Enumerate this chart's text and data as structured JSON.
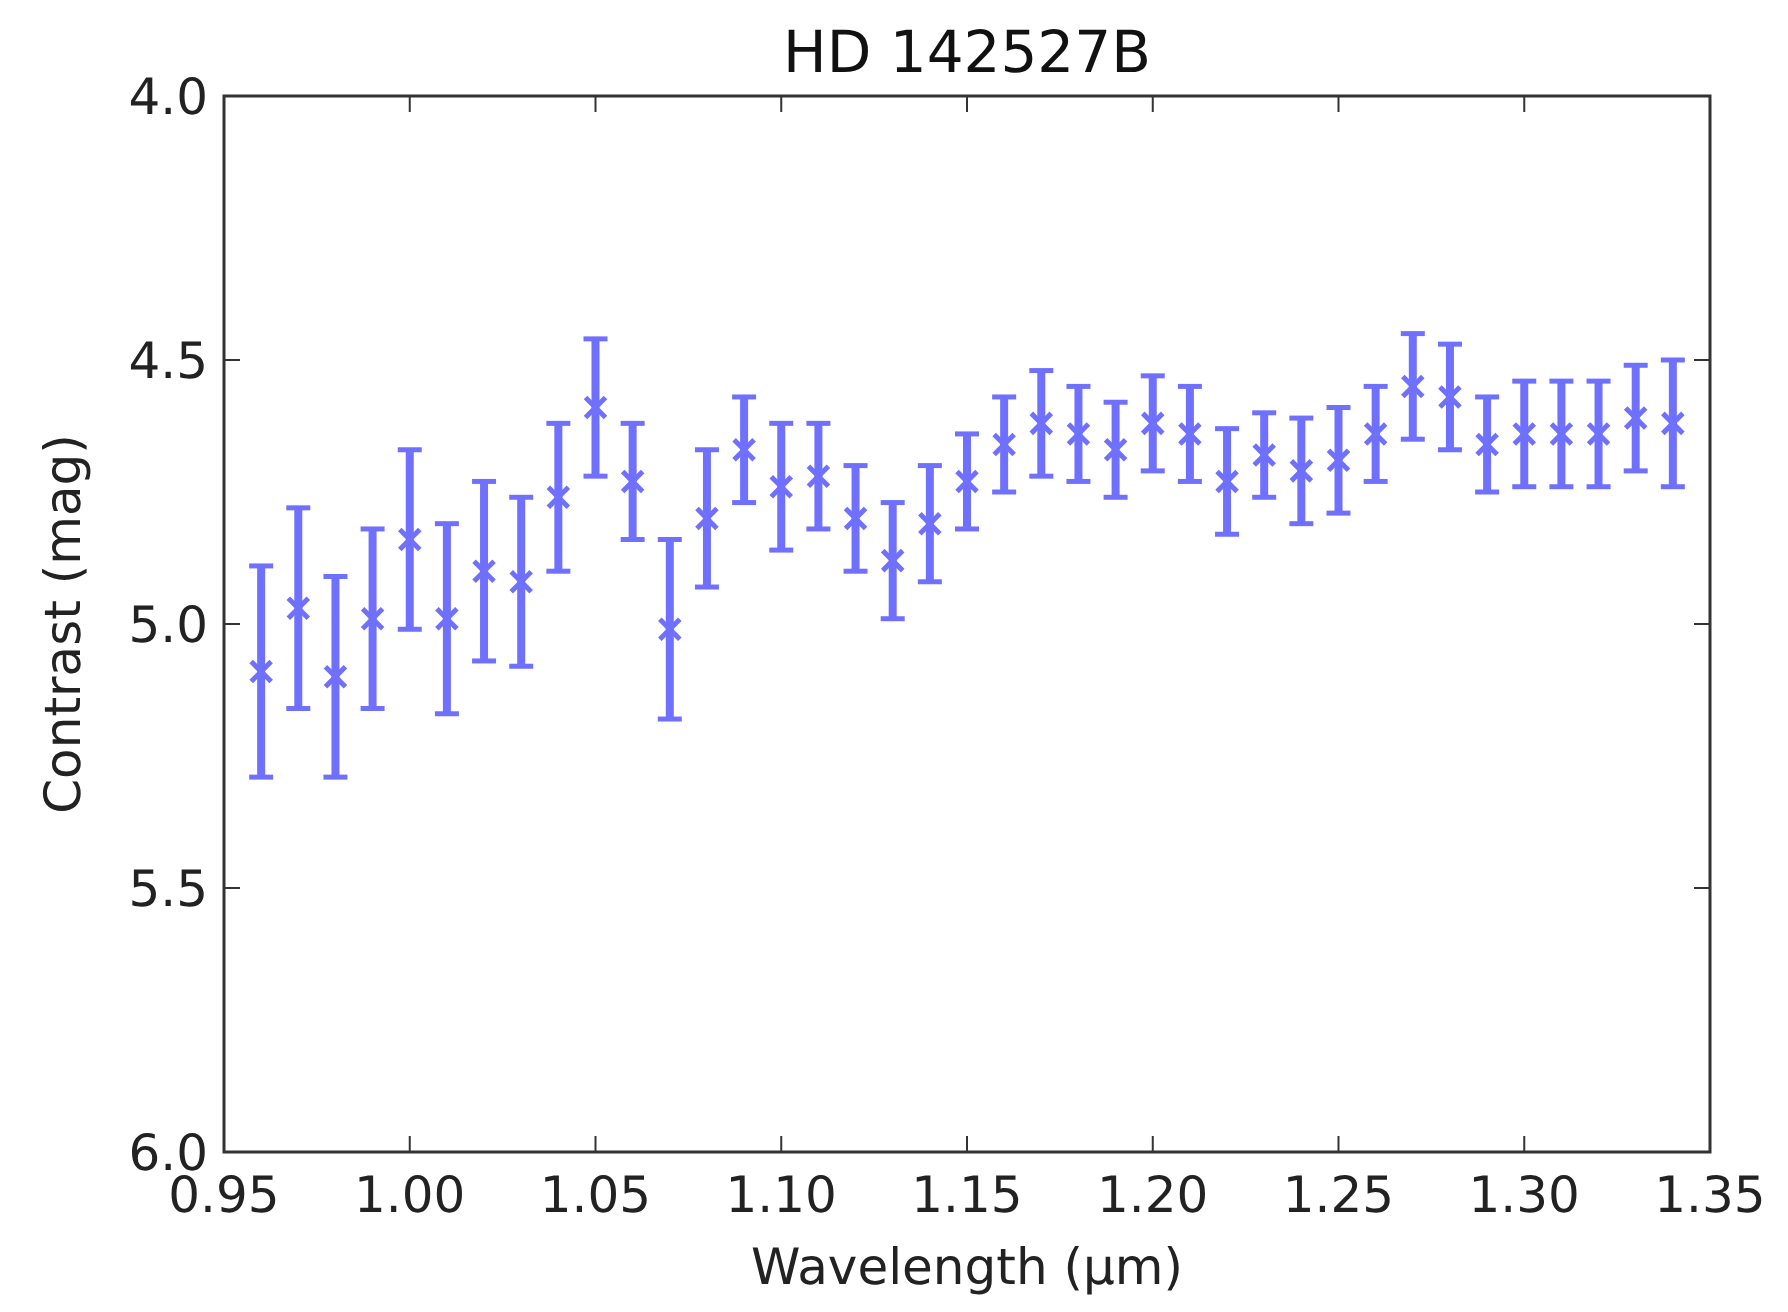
{
  "chart_data": {
    "type": "scatter",
    "title": "HD 142527B",
    "xlabel": "Wavelength (μm)",
    "ylabel": "Contrast (mag)",
    "x": [
      0.96,
      0.97,
      0.98,
      0.99,
      1.0,
      1.01,
      1.02,
      1.03,
      1.04,
      1.05,
      1.06,
      1.07,
      1.08,
      1.09,
      1.1,
      1.11,
      1.12,
      1.13,
      1.14,
      1.15,
      1.16,
      1.17,
      1.18,
      1.19,
      1.2,
      1.21,
      1.22,
      1.23,
      1.24,
      1.25,
      1.26,
      1.27,
      1.28,
      1.29,
      1.3,
      1.31,
      1.32,
      1.33,
      1.34
    ],
    "series": [
      {
        "color": "#7070ff",
        "values": [
          5.09,
          4.97,
          5.1,
          4.99,
          4.84,
          4.99,
          4.9,
          4.92,
          4.76,
          4.59,
          4.73,
          5.01,
          4.8,
          4.67,
          4.74,
          4.72,
          4.8,
          4.88,
          4.81,
          4.73,
          4.66,
          4.62,
          4.64,
          4.67,
          4.62,
          4.64,
          4.73,
          4.68,
          4.71,
          4.69,
          4.64,
          4.55,
          4.57,
          4.66,
          4.64,
          4.64,
          4.64,
          4.61,
          4.62
        ],
        "errors": [
          0.2,
          0.19,
          0.19,
          0.17,
          0.17,
          0.18,
          0.17,
          0.16,
          0.14,
          0.13,
          0.11,
          0.17,
          0.13,
          0.1,
          0.12,
          0.1,
          0.1,
          0.11,
          0.11,
          0.09,
          0.09,
          0.1,
          0.09,
          0.09,
          0.09,
          0.09,
          0.1,
          0.08,
          0.1,
          0.1,
          0.09,
          0.1,
          0.1,
          0.09,
          0.1,
          0.1,
          0.1,
          0.1,
          0.12
        ]
      }
    ],
    "marker": "cross",
    "grid": false,
    "xlim": [
      0.95,
      1.35
    ],
    "xticks": [
      {
        "value": 0.95,
        "label": "0.95"
      },
      {
        "value": 1.0,
        "label": "1.00"
      },
      {
        "value": 1.05,
        "label": "1.05"
      },
      {
        "value": 1.1,
        "label": "1.10"
      },
      {
        "value": 1.15,
        "label": "1.15"
      },
      {
        "value": 1.2,
        "label": "1.20"
      },
      {
        "value": 1.25,
        "label": "1.25"
      },
      {
        "value": 1.3,
        "label": "1.30"
      },
      {
        "value": 1.35,
        "label": "1.35"
      }
    ],
    "ylim": [
      6.0,
      4.0
    ],
    "yticks": [
      {
        "value": 4.0,
        "label": "4.0"
      },
      {
        "value": 4.5,
        "label": "4.5"
      },
      {
        "value": 5.0,
        "label": "5.0"
      },
      {
        "value": 5.5,
        "label": "5.5"
      },
      {
        "value": 6.0,
        "label": "6.0"
      }
    ]
  }
}
